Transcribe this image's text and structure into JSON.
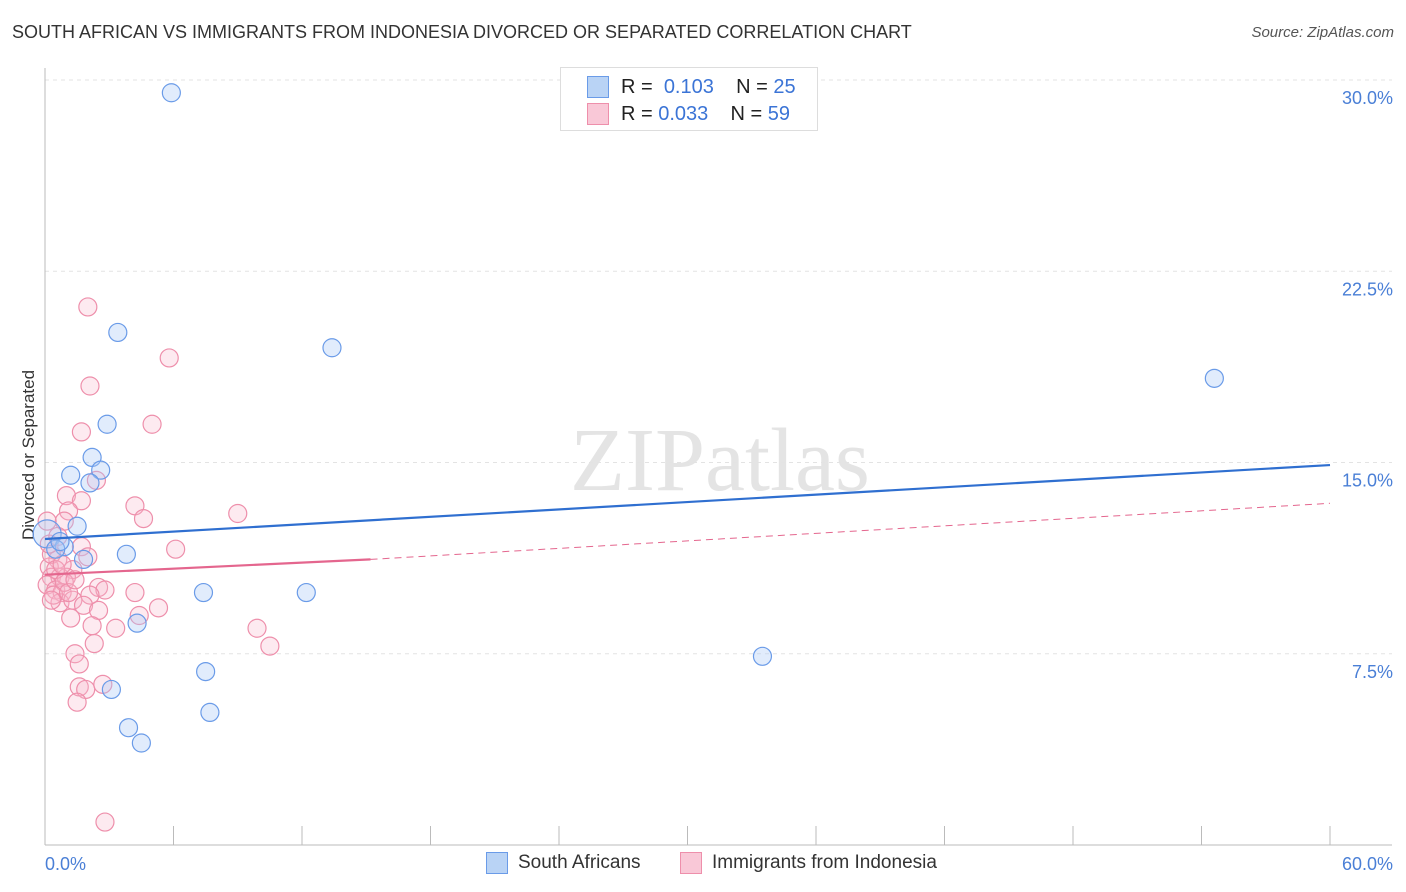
{
  "title": "SOUTH AFRICAN VS IMMIGRANTS FROM INDONESIA DIVORCED OR SEPARATED CORRELATION CHART",
  "source": "Source: ZipAtlas.com",
  "watermark": "ZIPatlas",
  "legend": [
    {
      "r_label": "R =",
      "r": "0.103",
      "n_label": "N =",
      "n": "25"
    },
    {
      "r_label": "R =",
      "r": "0.033",
      "n_label": "N =",
      "n": "59"
    }
  ],
  "chart_data": {
    "type": "scatter",
    "title": "SOUTH AFRICAN VS IMMIGRANTS FROM INDONESIA DIVORCED OR SEPARATED CORRELATION CHART",
    "xlabel": "",
    "ylabel": "Divorced or Separated",
    "xlim": [
      0,
      60
    ],
    "ylim": [
      0,
      30
    ],
    "x_tick_labels": [
      "0.0%",
      "60.0%"
    ],
    "y_ticks": [
      7.5,
      15,
      22.5,
      30
    ],
    "y_tick_labels": [
      "7.5%",
      "15.0%",
      "22.5%",
      "30.0%"
    ],
    "legend_position": "bottom",
    "series": [
      {
        "name": "South Africans",
        "color": "#6a9be8",
        "line_color": "#2f6fd0",
        "trend": [
          [
            0,
            12.0
          ],
          [
            60,
            14.9
          ]
        ],
        "points": [
          [
            5.9,
            29.5
          ],
          [
            3.4,
            20.1
          ],
          [
            13.4,
            19.5
          ],
          [
            54.6,
            18.3
          ],
          [
            2.9,
            16.5
          ],
          [
            2.2,
            15.2
          ],
          [
            1.2,
            14.5
          ],
          [
            2.6,
            14.7
          ],
          [
            2.1,
            14.2
          ],
          [
            1.5,
            12.5
          ],
          [
            0.1,
            12.2
          ],
          [
            0.9,
            11.7
          ],
          [
            0.5,
            11.6
          ],
          [
            0.7,
            11.9
          ],
          [
            1.8,
            11.2
          ],
          [
            3.8,
            11.4
          ],
          [
            7.4,
            9.9
          ],
          [
            12.2,
            9.9
          ],
          [
            4.3,
            8.7
          ],
          [
            7.5,
            6.8
          ],
          [
            33.5,
            7.4
          ],
          [
            3.1,
            6.1
          ],
          [
            7.7,
            5.2
          ],
          [
            3.9,
            4.6
          ],
          [
            4.5,
            4.0
          ]
        ]
      },
      {
        "name": "Immigrants from Indonesia",
        "color": "#ee8fab",
        "line_color": "#e4668e",
        "trend": [
          [
            0,
            10.6
          ],
          [
            15.2,
            11.2
          ]
        ],
        "trend_dashed": [
          [
            15.2,
            11.2
          ],
          [
            60,
            13.4
          ]
        ],
        "points": [
          [
            2.0,
            21.1
          ],
          [
            5.8,
            19.1
          ],
          [
            2.1,
            18.0
          ],
          [
            5.0,
            16.5
          ],
          [
            1.7,
            16.2
          ],
          [
            2.4,
            14.3
          ],
          [
            1.0,
            13.7
          ],
          [
            1.7,
            13.5
          ],
          [
            4.2,
            13.3
          ],
          [
            1.1,
            13.1
          ],
          [
            9.0,
            13.0
          ],
          [
            4.6,
            12.8
          ],
          [
            0.9,
            12.7
          ],
          [
            0.1,
            12.7
          ],
          [
            6.1,
            11.6
          ],
          [
            1.7,
            11.7
          ],
          [
            2.0,
            11.3
          ],
          [
            0.6,
            11.2
          ],
          [
            0.2,
            10.9
          ],
          [
            1.3,
            10.8
          ],
          [
            0.3,
            10.5
          ],
          [
            0.7,
            10.5
          ],
          [
            1.0,
            10.5
          ],
          [
            0.1,
            10.2
          ],
          [
            2.5,
            10.1
          ],
          [
            2.8,
            10.0
          ],
          [
            0.5,
            10.0
          ],
          [
            0.8,
            9.9
          ],
          [
            2.1,
            9.8
          ],
          [
            4.2,
            9.9
          ],
          [
            0.7,
            9.5
          ],
          [
            1.3,
            9.6
          ],
          [
            1.8,
            9.4
          ],
          [
            2.5,
            9.2
          ],
          [
            5.3,
            9.3
          ],
          [
            4.4,
            9.0
          ],
          [
            1.2,
            8.9
          ],
          [
            2.2,
            8.6
          ],
          [
            3.3,
            8.5
          ],
          [
            9.9,
            8.5
          ],
          [
            2.3,
            7.9
          ],
          [
            10.5,
            7.8
          ],
          [
            1.4,
            7.5
          ],
          [
            1.6,
            7.1
          ],
          [
            1.6,
            6.2
          ],
          [
            1.9,
            6.1
          ],
          [
            2.7,
            6.3
          ],
          [
            1.5,
            5.6
          ],
          [
            2.8,
            0.9
          ],
          [
            0.3,
            11.4
          ],
          [
            0.5,
            10.8
          ],
          [
            0.9,
            10.3
          ],
          [
            0.4,
            9.8
          ],
          [
            1.1,
            9.9
          ],
          [
            0.2,
            11.8
          ],
          [
            0.6,
            12.1
          ],
          [
            1.4,
            10.4
          ],
          [
            0.8,
            11.0
          ],
          [
            0.3,
            9.6
          ]
        ]
      }
    ]
  }
}
